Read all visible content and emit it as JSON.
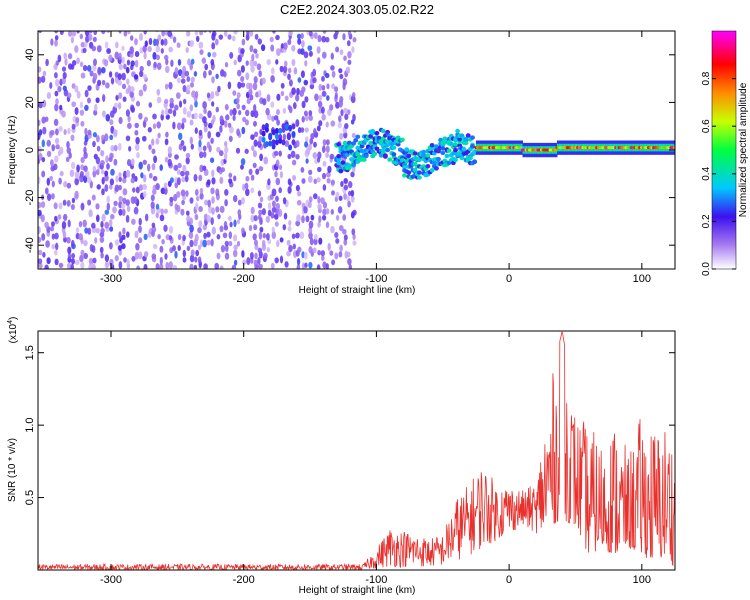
{
  "title": "C2E2.2024.303.05.02.R22",
  "colors": {
    "snr_line": "#e8302c",
    "axis": "#000000"
  },
  "chart_data": [
    {
      "type": "heatmap",
      "name": "spectrogram",
      "xlabel": "Height of straight line (km)",
      "ylabel": "Frequency (Hz)",
      "xlim": [
        -355,
        125
      ],
      "ylim": [
        -50,
        50
      ],
      "xticks": [
        -300,
        -200,
        -100,
        0,
        100
      ],
      "yticks": [
        -40,
        -20,
        0,
        20,
        40
      ],
      "xtick_labels": [
        "-300",
        "-200",
        "-100",
        "0",
        "100"
      ],
      "ytick_labels": [
        "-40",
        "-20",
        "0",
        "20",
        "40"
      ],
      "colorbar": {
        "label": "Normalized spectral amplitude",
        "range": [
          0,
          1
        ],
        "ticks": [
          0.0,
          0.2,
          0.4,
          0.6,
          0.8
        ],
        "tick_labels": [
          "0.0",
          "0.2",
          "0.4",
          "0.6",
          "0.8"
        ]
      },
      "regions": [
        {
          "description": "broadband noise",
          "x_range": [
            -355,
            -118
          ],
          "freq_range": [
            -50,
            50
          ],
          "amplitude": [
            0.05,
            0.2
          ]
        },
        {
          "description": "signal onset",
          "x_range": [
            -185,
            -160
          ],
          "freq_center": 6,
          "amplitude": [
            0.15,
            0.3
          ]
        },
        {
          "description": "dispersed signal",
          "x_range": [
            -130,
            -25
          ],
          "freq_center": 0,
          "freq_spread": 12,
          "amplitude": [
            0.2,
            0.45
          ]
        },
        {
          "description": "narrow carrier",
          "x_range": [
            -25,
            125
          ],
          "freq_center": 1,
          "freq_spread": 3,
          "amplitude": [
            0.5,
            0.95
          ]
        }
      ]
    },
    {
      "type": "line",
      "name": "snr",
      "xlabel": "Height of straight line (km)",
      "ylabel": "SNR (10 * v/v)",
      "multiplier_label": "(x10",
      "multiplier_exp": "4",
      "multiplier_close": ")",
      "xlim": [
        -355,
        125
      ],
      "ylim": [
        0,
        1.65
      ],
      "xticks": [
        -300,
        -200,
        -100,
        0,
        100
      ],
      "yticks": [
        0.5,
        1.0,
        1.5
      ],
      "xtick_labels": [
        "-300",
        "-200",
        "-100",
        "0",
        "100"
      ],
      "ytick_labels": [
        "0.5",
        "1.0",
        "1.5"
      ],
      "envelope": {
        "x": [
          -355,
          -110,
          -100,
          -90,
          -80,
          -70,
          -60,
          -50,
          -40,
          -30,
          -20,
          -10,
          0,
          10,
          20,
          30,
          40,
          50,
          60,
          70,
          80,
          90,
          100,
          110,
          120,
          125
        ],
        "min": [
          0.0,
          0.0,
          0.01,
          0.02,
          0.02,
          0.02,
          0.02,
          0.03,
          0.06,
          0.1,
          0.15,
          0.2,
          0.25,
          0.3,
          0.25,
          0.3,
          0.35,
          0.3,
          0.1,
          0.15,
          0.1,
          0.15,
          0.1,
          0.05,
          0.1,
          0.0
        ],
        "max": [
          0.04,
          0.04,
          0.15,
          0.3,
          0.28,
          0.25,
          0.22,
          0.25,
          0.5,
          0.6,
          0.75,
          0.6,
          0.6,
          0.55,
          0.6,
          1.25,
          1.65,
          1.1,
          1.0,
          0.9,
          1.05,
          0.8,
          1.1,
          1.0,
          1.05,
          0.85
        ]
      }
    }
  ]
}
